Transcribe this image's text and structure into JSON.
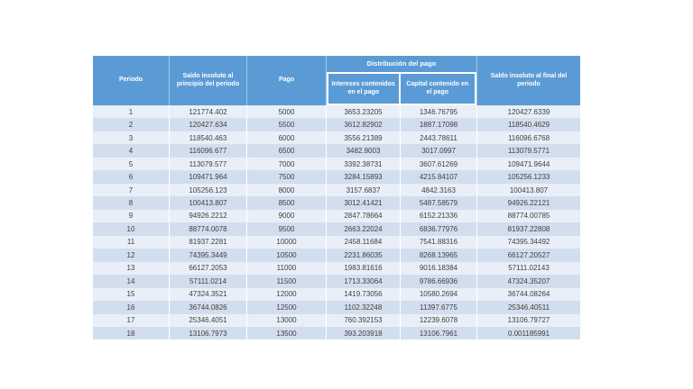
{
  "colors": {
    "header_bg": "#5b9bd5",
    "header_text": "#ffffff",
    "band_light": "#e9eff8",
    "band_dark": "#d2deee",
    "body_text": "#3f3f3f",
    "page_bg": "#ffffff"
  },
  "table": {
    "header": {
      "periodo": "Periodo",
      "saldo_inicial": "Saldo insoluto al principio del periodo",
      "pago": "Pago",
      "distribucion": "Distribución del pago",
      "intereses": "Intereses contenidos en el pago",
      "capital": "Capital contenido en el pago",
      "saldo_final": "Saldo insoluto al final del periodo"
    }
  },
  "chart_data": {
    "type": "table",
    "title": "",
    "column_group": {
      "label": "Distribución del pago",
      "spans_columns": [
        "Intereses contenidos en el pago",
        "Capital contenido en el pago"
      ]
    },
    "columns": [
      "Periodo",
      "Saldo insoluto al principio del periodo",
      "Pago",
      "Intereses contenidos en el pago",
      "Capital contenido en el pago",
      "Saldo insoluto al final del periodo"
    ],
    "rows": [
      [
        "1",
        "121774.402",
        "5000",
        "3653.23205",
        "1346.76795",
        "120427.6339"
      ],
      [
        "2",
        "120427.634",
        "5500",
        "3612.82902",
        "1887.17098",
        "118540.4629"
      ],
      [
        "3",
        "118540.463",
        "6000",
        "3556.21389",
        "2443.78611",
        "116096.6768"
      ],
      [
        "4",
        "116096.677",
        "6500",
        "3482.9003",
        "3017.0997",
        "113079.5771"
      ],
      [
        "5",
        "113079.577",
        "7000",
        "3392.38731",
        "3607.61269",
        "109471.9644"
      ],
      [
        "6",
        "109471.964",
        "7500",
        "3284.15893",
        "4215.84107",
        "105256.1233"
      ],
      [
        "7",
        "105256.123",
        "8000",
        "3157.6837",
        "4842.3163",
        "100413.807"
      ],
      [
        "8",
        "100413.807",
        "8500",
        "3012.41421",
        "5487.58579",
        "94926.22121"
      ],
      [
        "9",
        "94926.2212",
        "9000",
        "2847.78664",
        "6152.21336",
        "88774.00785"
      ],
      [
        "10",
        "88774.0078",
        "9500",
        "2663.22024",
        "6836.77976",
        "81937.22808"
      ],
      [
        "11",
        "81937.2281",
        "10000",
        "2458.11684",
        "7541.88316",
        "74395.34492"
      ],
      [
        "12",
        "74395.3449",
        "10500",
        "2231.86035",
        "8268.13965",
        "66127.20527"
      ],
      [
        "13",
        "66127.2053",
        "11000",
        "1983.81616",
        "9016.18384",
        "57111.02143"
      ],
      [
        "14",
        "57111.0214",
        "11500",
        "1713.33064",
        "9786.66936",
        "47324.35207"
      ],
      [
        "15",
        "47324.3521",
        "12000",
        "1419.73056",
        "10580.2694",
        "36744.08264"
      ],
      [
        "16",
        "36744.0826",
        "12500",
        "1102.32248",
        "11397.6775",
        "25346.40511"
      ],
      [
        "17",
        "25346.4051",
        "13000",
        "760.392153",
        "12239.6078",
        "13106.79727"
      ],
      [
        "18",
        "13106.7973",
        "13500",
        "393.203918",
        "13106.7961",
        "0.001185991"
      ]
    ]
  }
}
